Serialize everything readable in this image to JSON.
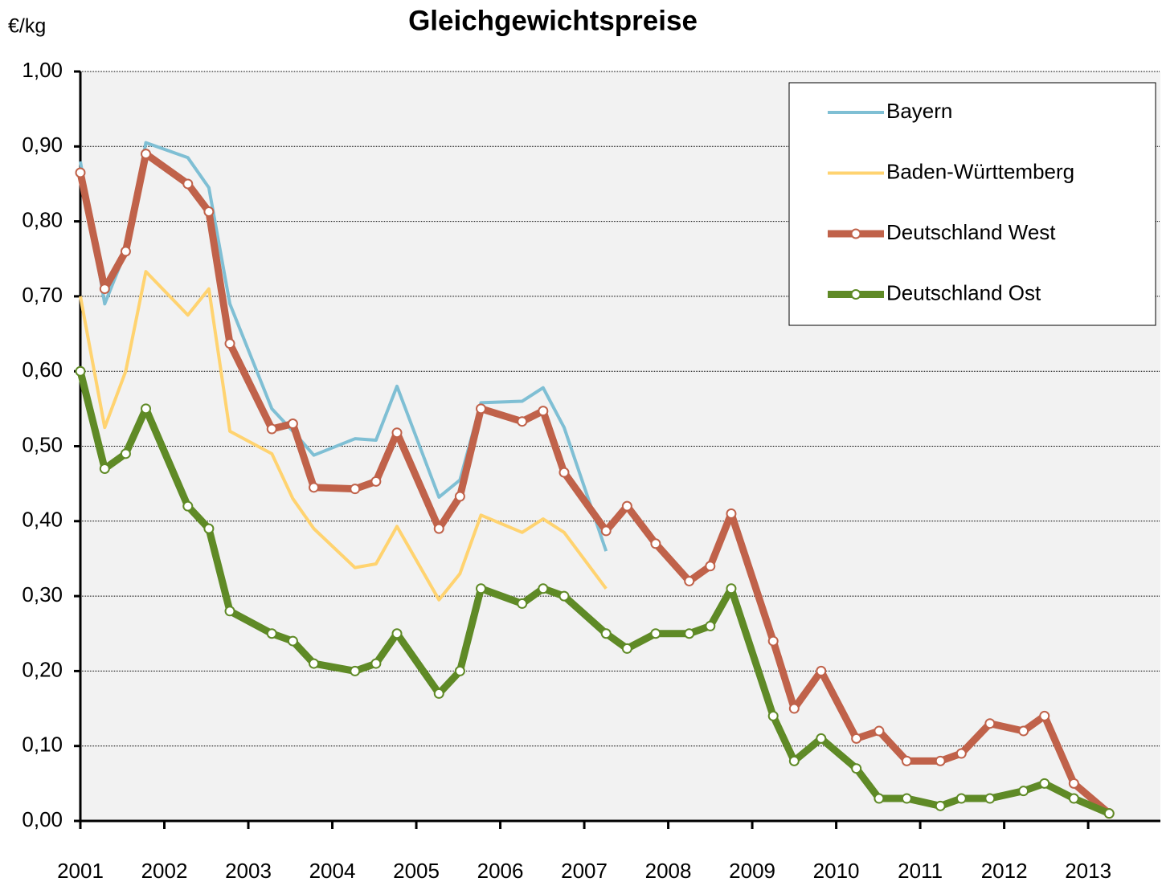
{
  "chart_data": {
    "type": "line",
    "title": "Gleichgewichtspreise",
    "y_label": "€/kg",
    "x": [
      2001.0,
      2001.29,
      2001.54,
      2001.78,
      2002.28,
      2002.53,
      2002.78,
      2003.28,
      2003.53,
      2003.78,
      2004.27,
      2004.52,
      2004.77,
      2005.27,
      2005.52,
      2005.77,
      2006.26,
      2006.51,
      2006.76,
      2007.26,
      2007.51,
      2007.85,
      2008.25,
      2008.5,
      2008.75,
      2009.25,
      2009.5,
      2009.82,
      2010.24,
      2010.51,
      2010.84,
      2011.24,
      2011.49,
      2011.83,
      2012.23,
      2012.48,
      2012.83,
      2013.25
    ],
    "series": [
      {
        "name": "Bayern",
        "color": "#7fbfd4",
        "values": [
          0.88,
          0.69,
          0.76,
          0.905,
          0.885,
          0.845,
          0.69,
          0.55,
          0.52,
          0.488,
          0.51,
          0.508,
          0.58,
          0.432,
          0.455,
          0.558,
          0.56,
          0.578,
          0.525,
          0.36,
          null,
          null,
          null,
          null,
          null,
          null,
          null,
          null,
          null,
          null,
          null,
          null,
          null,
          null,
          null,
          null,
          null,
          null
        ]
      },
      {
        "name": "Baden-Württemberg",
        "color": "#ffd370",
        "values": [
          0.7,
          0.525,
          0.6,
          0.733,
          0.675,
          0.71,
          0.52,
          0.49,
          0.43,
          0.39,
          0.338,
          0.343,
          0.393,
          0.295,
          0.33,
          0.408,
          0.385,
          0.403,
          0.385,
          0.31,
          null,
          null,
          null,
          null,
          null,
          null,
          null,
          null,
          null,
          null,
          null,
          null,
          null,
          null,
          null,
          null,
          null,
          null
        ]
      },
      {
        "name": "Deutschland West",
        "color": "#c0624a",
        "marker": "circle",
        "values": [
          0.865,
          0.71,
          0.76,
          0.89,
          0.85,
          0.813,
          0.637,
          0.523,
          0.53,
          0.445,
          0.443,
          0.453,
          0.518,
          0.39,
          0.433,
          0.55,
          0.533,
          0.547,
          0.465,
          0.387,
          0.42,
          0.37,
          0.32,
          0.34,
          0.41,
          0.24,
          0.15,
          0.2,
          0.11,
          0.12,
          0.08,
          0.08,
          0.09,
          0.13,
          0.12,
          0.14,
          0.05,
          0.01
        ]
      },
      {
        "name": "Deutschland Ost",
        "color": "#5f8a26",
        "marker": "circle",
        "values": [
          0.6,
          0.47,
          0.49,
          0.55,
          0.42,
          0.39,
          0.28,
          0.25,
          0.24,
          0.21,
          0.2,
          0.21,
          0.25,
          0.17,
          0.2,
          0.31,
          0.29,
          0.31,
          0.3,
          0.25,
          0.23,
          0.25,
          0.25,
          0.26,
          0.31,
          0.14,
          0.08,
          0.11,
          0.07,
          0.03,
          0.03,
          0.02,
          0.03,
          0.03,
          0.04,
          0.05,
          0.03,
          0.01
        ]
      }
    ],
    "xlim": [
      2001,
      2013.86
    ],
    "xticks": [
      2001,
      2002,
      2003,
      2004,
      2005,
      2006,
      2007,
      2008,
      2009,
      2010,
      2011,
      2012,
      2013
    ],
    "ylim": [
      0,
      1
    ],
    "yticks": [
      {
        "value": 0,
        "label": "0,00"
      },
      {
        "value": 0.1,
        "label": "0,10"
      },
      {
        "value": 0.2,
        "label": "0,20"
      },
      {
        "value": 0.3,
        "label": "0,30"
      },
      {
        "value": 0.4,
        "label": "0,40"
      },
      {
        "value": 0.5,
        "label": "0,50"
      },
      {
        "value": 0.6,
        "label": "0,60"
      },
      {
        "value": 0.7,
        "label": "0,70"
      },
      {
        "value": 0.8,
        "label": "0,80"
      },
      {
        "value": 0.9,
        "label": "0,90"
      },
      {
        "value": 1,
        "label": "1,00"
      }
    ],
    "grid": true,
    "legend": "upper right"
  }
}
